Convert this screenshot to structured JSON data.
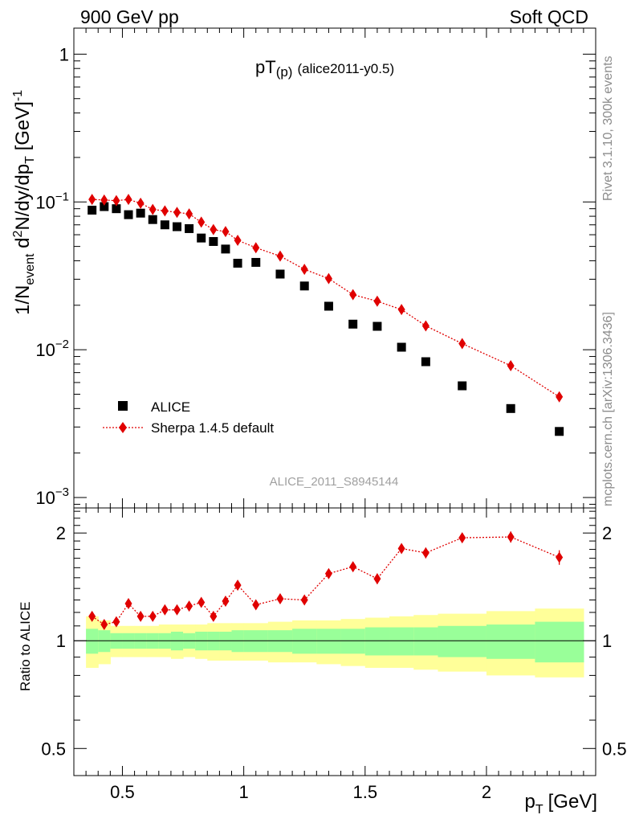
{
  "header": {
    "left": "900 GeV pp",
    "right": "Soft QCD"
  },
  "side_labels": {
    "rivet": "Rivet 3.1.10,  300k events",
    "mcplots": "mcplots.cern.ch [arXiv:1306.3436]"
  },
  "watermark": "ALICE_2011_S8945144",
  "colors": {
    "data": "#000000",
    "mc": "#e00000",
    "band_inner": "#99ff99",
    "band_outer": "#ffff99"
  },
  "chart_data": [
    {
      "type": "scatter",
      "title": "pT(p) (alice2011-y0.5)",
      "title_main": "pT",
      "title_sub": "(p)",
      "title_rest": "(alice2011-y0.5)",
      "ylabel": "1/N_event d²N/dy/dp_T [GeV]⁻¹",
      "yscale": "log",
      "ylim": [
        0.00085,
        1.5
      ],
      "xlim": [
        0.3,
        2.45
      ],
      "yticks": [
        {
          "value": 1,
          "base": "1",
          "exp": ""
        },
        {
          "value": 0.1,
          "base": "10",
          "exp": "−1"
        },
        {
          "value": 0.01,
          "base": "10",
          "exp": "−2"
        },
        {
          "value": 0.001,
          "base": "10",
          "exp": "−3"
        }
      ],
      "legend": {
        "position": "lower-left",
        "entries": [
          "ALICE",
          "Sherpa 1.4.5 default"
        ]
      },
      "series": [
        {
          "name": "ALICE",
          "marker": "square",
          "x": [
            0.375,
            0.425,
            0.475,
            0.525,
            0.575,
            0.625,
            0.675,
            0.725,
            0.775,
            0.825,
            0.875,
            0.925,
            0.975,
            1.05,
            1.15,
            1.25,
            1.35,
            1.45,
            1.55,
            1.65,
            1.75,
            1.9,
            2.1,
            2.3
          ],
          "y": [
            0.088,
            0.093,
            0.09,
            0.082,
            0.084,
            0.076,
            0.07,
            0.068,
            0.066,
            0.057,
            0.054,
            0.048,
            0.0385,
            0.039,
            0.0325,
            0.027,
            0.0197,
            0.0149,
            0.0144,
            0.0104,
            0.0083,
            0.0057,
            0.004,
            0.0028
          ]
        },
        {
          "name": "Sherpa 1.4.5 default",
          "marker": "diamond",
          "line": "dotted",
          "x": [
            0.375,
            0.425,
            0.475,
            0.525,
            0.575,
            0.625,
            0.675,
            0.725,
            0.775,
            0.825,
            0.875,
            0.925,
            0.975,
            1.05,
            1.15,
            1.25,
            1.35,
            1.45,
            1.55,
            1.65,
            1.75,
            1.9,
            2.1,
            2.3
          ],
          "y": [
            0.104,
            0.103,
            0.102,
            0.104,
            0.098,
            0.089,
            0.087,
            0.085,
            0.083,
            0.073,
            0.065,
            0.063,
            0.055,
            0.049,
            0.043,
            0.035,
            0.0303,
            0.0236,
            0.0213,
            0.0187,
            0.0145,
            0.011,
            0.0078,
            0.0048
          ]
        }
      ]
    },
    {
      "type": "scatter",
      "ylabel": "Ratio to ALICE",
      "xlabel": "p_T [GeV]",
      "xlabel_main": "p",
      "xlabel_sub": "T",
      "xlabel_unit": "[GeV]",
      "yscale": "log",
      "ylim": [
        0.42,
        2.35
      ],
      "xlim": [
        0.3,
        2.45
      ],
      "xticks": [
        0.5,
        1,
        1.5,
        2
      ],
      "xtick_labels": [
        "0.5",
        "1",
        "1.5",
        "2"
      ],
      "yticks": [
        0.5,
        1,
        2
      ],
      "ytick_labels": [
        "0.5",
        "1",
        "2"
      ],
      "bands": {
        "edges": [
          0.35,
          0.4,
          0.45,
          0.5,
          0.55,
          0.6,
          0.65,
          0.7,
          0.75,
          0.8,
          0.85,
          0.9,
          0.95,
          1.0,
          1.1,
          1.2,
          1.3,
          1.4,
          1.5,
          1.6,
          1.7,
          1.8,
          2.0,
          2.2,
          2.4
        ],
        "inner_low": [
          0.92,
          0.93,
          0.95,
          0.95,
          0.95,
          0.95,
          0.95,
          0.94,
          0.95,
          0.94,
          0.94,
          0.94,
          0.93,
          0.93,
          0.93,
          0.92,
          0.92,
          0.92,
          0.91,
          0.91,
          0.91,
          0.9,
          0.89,
          0.87
        ],
        "inner_high": [
          1.08,
          1.07,
          1.05,
          1.05,
          1.05,
          1.05,
          1.05,
          1.06,
          1.05,
          1.06,
          1.06,
          1.06,
          1.07,
          1.07,
          1.07,
          1.08,
          1.08,
          1.08,
          1.09,
          1.09,
          1.09,
          1.1,
          1.11,
          1.13
        ],
        "outer_low": [
          0.84,
          0.86,
          0.9,
          0.9,
          0.9,
          0.9,
          0.9,
          0.89,
          0.9,
          0.89,
          0.88,
          0.88,
          0.88,
          0.88,
          0.87,
          0.87,
          0.86,
          0.85,
          0.84,
          0.84,
          0.83,
          0.82,
          0.8,
          0.79
        ],
        "outer_high": [
          1.17,
          1.14,
          1.1,
          1.1,
          1.1,
          1.1,
          1.11,
          1.11,
          1.11,
          1.11,
          1.12,
          1.12,
          1.12,
          1.12,
          1.13,
          1.14,
          1.14,
          1.15,
          1.16,
          1.17,
          1.18,
          1.19,
          1.21,
          1.23
        ]
      },
      "series": [
        {
          "name": "Sherpa 1.4.5 default / ALICE",
          "marker": "diamond",
          "line": "dotted",
          "x": [
            0.375,
            0.425,
            0.475,
            0.525,
            0.575,
            0.625,
            0.675,
            0.725,
            0.775,
            0.825,
            0.875,
            0.925,
            0.975,
            1.05,
            1.15,
            1.25,
            1.35,
            1.45,
            1.55,
            1.65,
            1.75,
            1.9,
            2.1,
            2.3
          ],
          "y": [
            1.17,
            1.11,
            1.13,
            1.27,
            1.17,
            1.17,
            1.22,
            1.22,
            1.25,
            1.28,
            1.17,
            1.29,
            1.43,
            1.26,
            1.31,
            1.3,
            1.54,
            1.61,
            1.49,
            1.81,
            1.76,
            1.94,
            1.95,
            1.71
          ],
          "err": [
            0.03,
            0.03,
            0.03,
            0.03,
            0.03,
            0.03,
            0.03,
            0.03,
            0.03,
            0.03,
            0.03,
            0.04,
            0.04,
            0.03,
            0.03,
            0.04,
            0.04,
            0.05,
            0.05,
            0.05,
            0.06,
            0.06,
            0.07,
            0.08
          ]
        }
      ]
    }
  ]
}
